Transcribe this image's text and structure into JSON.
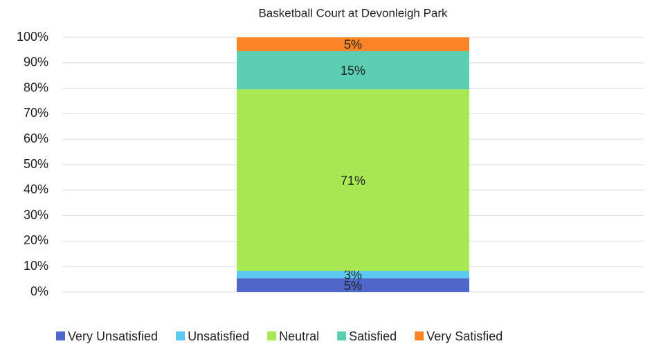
{
  "chart_data": {
    "type": "stacked_bar",
    "title": "Basketball Court at Devonleigh Park",
    "categories": [
      null
    ],
    "series": [
      {
        "name": "Very Unsatisfied",
        "color": "#4f67c9",
        "values": [
          5.4
        ],
        "value_labels": [
          "5%"
        ]
      },
      {
        "name": "Unsatisfied",
        "color": "#5bc8f2",
        "values": [
          2.9
        ],
        "value_labels": [
          "3%"
        ]
      },
      {
        "name": "Neutral",
        "color": "#a8e855",
        "values": [
          71.3
        ],
        "value_labels": [
          "71%"
        ]
      },
      {
        "name": "Satisfied",
        "color": "#5ccfb3",
        "values": [
          15
        ],
        "value_labels": [
          "15%"
        ]
      },
      {
        "name": "Very Satisfied",
        "color": "#fb8424",
        "values": [
          5.4
        ],
        "value_labels": [
          "5%"
        ]
      }
    ],
    "ylim": [
      0,
      100
    ],
    "yticks": [
      {
        "value": 0,
        "label": "0%"
      },
      {
        "value": 10,
        "label": "10%"
      },
      {
        "value": 20,
        "label": "20%"
      },
      {
        "value": 30,
        "label": "30%"
      },
      {
        "value": 40,
        "label": "40%"
      },
      {
        "value": 50,
        "label": "50%"
      },
      {
        "value": 60,
        "label": "60%"
      },
      {
        "value": 70,
        "label": "70%"
      },
      {
        "value": 80,
        "label": "80%"
      },
      {
        "value": 90,
        "label": "90%"
      },
      {
        "value": 100,
        "label": "100%"
      }
    ],
    "grid": true,
    "legend": "bottom"
  }
}
